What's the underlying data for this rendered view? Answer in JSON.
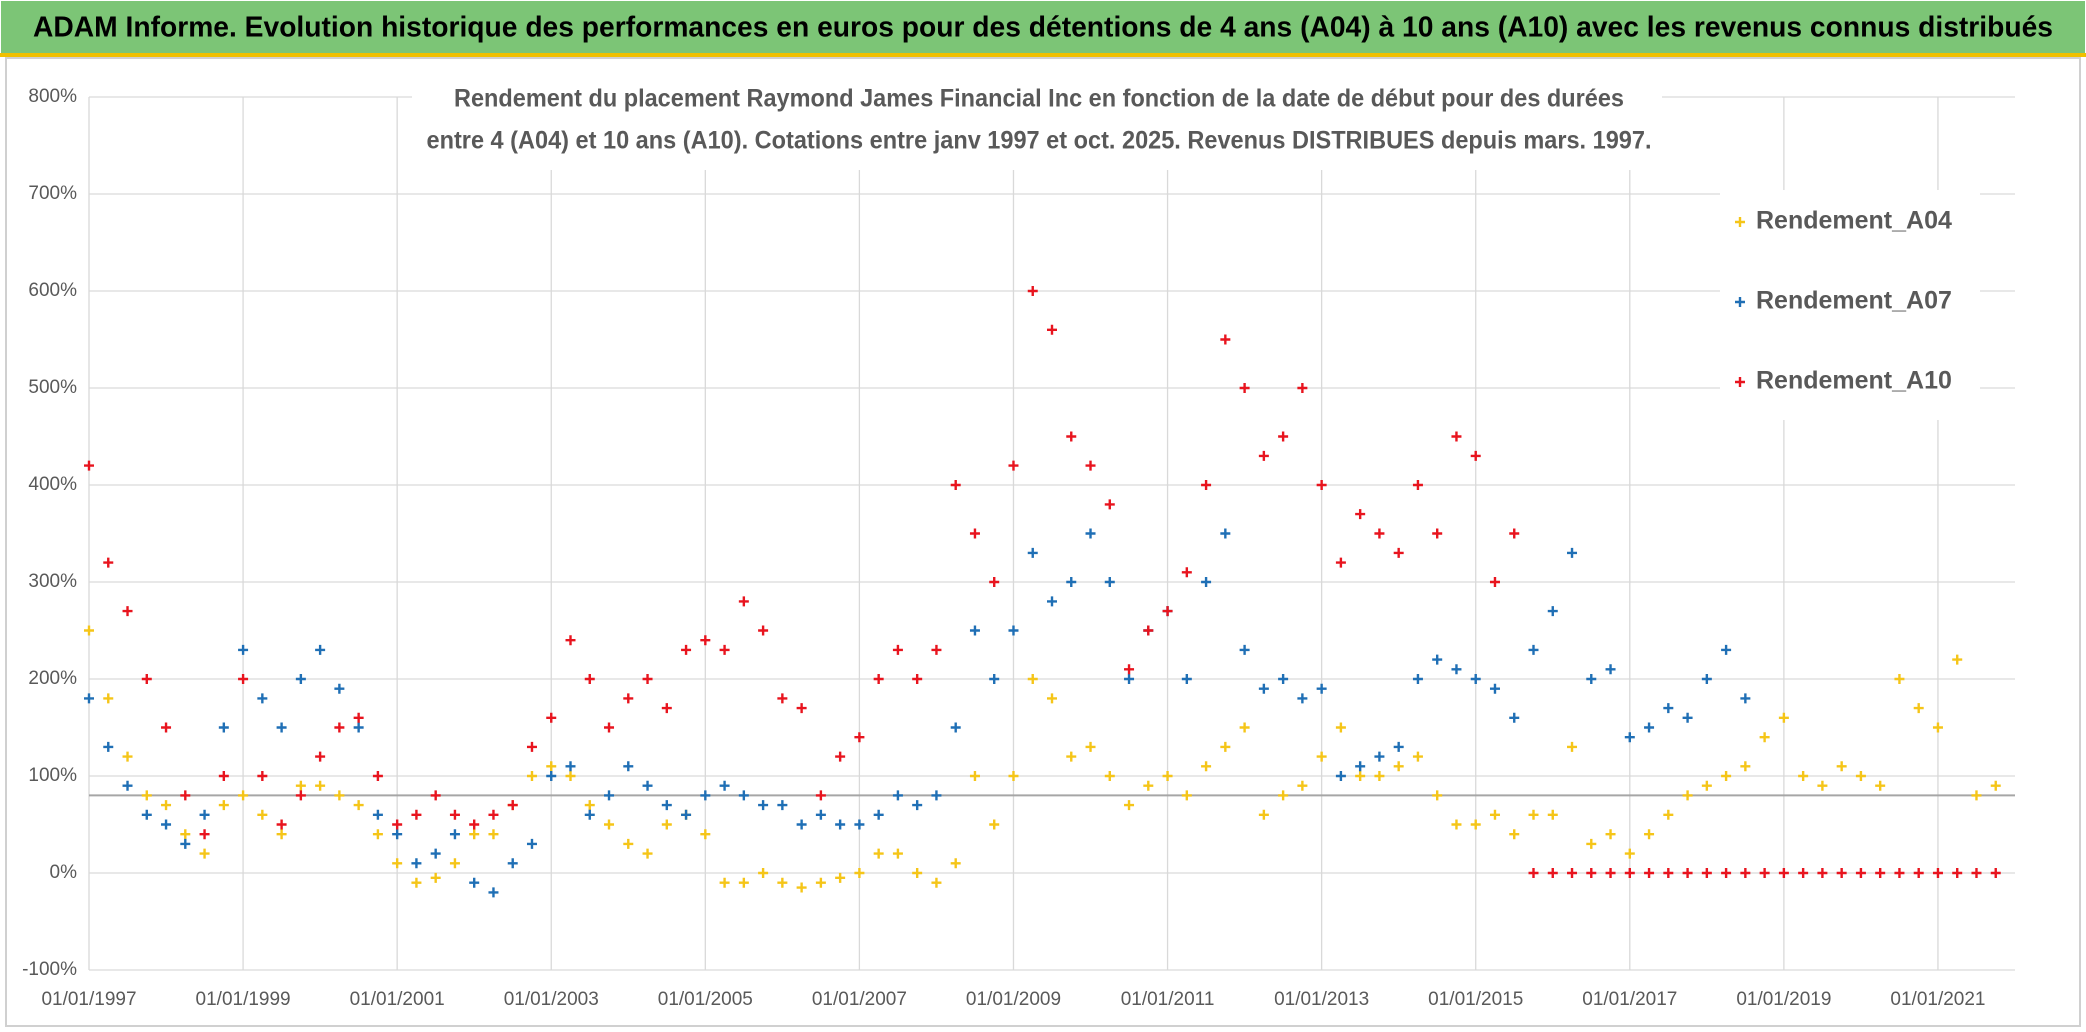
{
  "chart_data": {
    "type": "scatter",
    "title": "ADAM Informe. Evolution historique des performances en euros pour des détentions de 4 ans (A04) à 10 ans (A10) avec les revenus connus distribués",
    "subtitle": [
      "Rendement du placement Raymond James Financial Inc en fonction de la date de début pour des durées",
      "entre 4 (A04) et 10 ans (A10). Cotations entre janv 1997 et oct. 2025. Revenus DISTRIBUES depuis mars. 1997."
    ],
    "x": [
      "01/01/1997",
      "01/04/1997",
      "01/07/1997",
      "01/10/1997",
      "01/01/1998",
      "01/04/1998",
      "01/07/1998",
      "01/10/1998",
      "01/01/1999",
      "01/04/1999",
      "01/07/1999",
      "01/10/1999",
      "01/01/2000",
      "01/04/2000",
      "01/07/2000",
      "01/10/2000",
      "01/01/2001",
      "01/04/2001",
      "01/07/2001",
      "01/10/2001",
      "01/01/2002",
      "01/04/2002",
      "01/07/2002",
      "01/10/2002",
      "01/01/2003",
      "01/04/2003",
      "01/07/2003",
      "01/10/2003",
      "01/01/2004",
      "01/04/2004",
      "01/07/2004",
      "01/10/2004",
      "01/01/2005",
      "01/04/2005",
      "01/07/2005",
      "01/10/2005",
      "01/01/2006",
      "01/04/2006",
      "01/07/2006",
      "01/10/2006",
      "01/01/2007",
      "01/04/2007",
      "01/07/2007",
      "01/10/2007",
      "01/01/2008",
      "01/04/2008",
      "01/07/2008",
      "01/10/2008",
      "01/01/2009",
      "01/04/2009",
      "01/07/2009",
      "01/10/2009",
      "01/01/2010",
      "01/04/2010",
      "01/07/2010",
      "01/10/2010",
      "01/01/2011",
      "01/04/2011",
      "01/07/2011",
      "01/10/2011",
      "01/01/2012",
      "01/04/2012",
      "01/07/2012",
      "01/10/2012",
      "01/01/2013",
      "01/04/2013",
      "01/07/2013",
      "01/10/2013",
      "01/01/2014",
      "01/04/2014",
      "01/07/2014",
      "01/10/2014",
      "01/01/2015",
      "01/04/2015",
      "01/07/2015",
      "01/10/2015",
      "01/01/2016",
      "01/04/2016",
      "01/07/2016",
      "01/10/2016",
      "01/01/2017",
      "01/04/2017",
      "01/07/2017",
      "01/10/2017",
      "01/01/2018",
      "01/04/2018",
      "01/07/2018",
      "01/10/2018",
      "01/01/2019",
      "01/04/2019",
      "01/07/2019",
      "01/10/2019",
      "01/01/2020",
      "01/04/2020",
      "01/07/2020",
      "01/10/2020",
      "01/01/2021",
      "01/04/2021",
      "01/07/2021",
      "01/10/2021"
    ],
    "series": [
      {
        "name": "Rendement_A04",
        "color": "#f5c518",
        "values": [
          250,
          180,
          120,
          80,
          70,
          40,
          20,
          70,
          80,
          60,
          40,
          90,
          90,
          80,
          70,
          40,
          10,
          -10,
          -5,
          10,
          40,
          40,
          70,
          100,
          110,
          100,
          70,
          50,
          30,
          20,
          50,
          60,
          40,
          -10,
          -10,
          0,
          -10,
          -15,
          -10,
          -5,
          0,
          20,
          20,
          0,
          -10,
          10,
          100,
          50,
          100,
          200,
          180,
          120,
          130,
          100,
          70,
          90,
          100,
          80,
          110,
          130,
          150,
          60,
          80,
          90,
          120,
          150,
          100,
          100,
          110,
          120,
          80,
          50,
          50,
          60,
          40,
          60,
          60,
          130,
          30,
          40,
          20,
          40,
          60,
          80,
          90,
          100,
          110,
          140,
          160,
          100,
          90,
          110,
          100,
          90,
          200,
          170,
          150,
          220,
          80,
          90
        ]
      },
      {
        "name": "Rendement_A07",
        "color": "#1f6fb5",
        "values": [
          180,
          130,
          90,
          60,
          50,
          30,
          60,
          150,
          230,
          180,
          150,
          200,
          230,
          190,
          150,
          60,
          40,
          10,
          20,
          40,
          -10,
          -20,
          10,
          30,
          100,
          110,
          60,
          80,
          110,
          90,
          70,
          60,
          80,
          90,
          80,
          70,
          70,
          50,
          60,
          50,
          50,
          60,
          80,
          70,
          80,
          150,
          250,
          200,
          250,
          330,
          280,
          300,
          350,
          300,
          200,
          250,
          270,
          200,
          300,
          350,
          230,
          190,
          200,
          180,
          190,
          100,
          110,
          120,
          130,
          200,
          220,
          210,
          200,
          190,
          160,
          230,
          270,
          330,
          200,
          210,
          140,
          150,
          170,
          160,
          200,
          230,
          180,
          null,
          null,
          null,
          null,
          null,
          null,
          null,
          null,
          null,
          null,
          null,
          null,
          null
        ]
      },
      {
        "name": "Rendement_A10",
        "color": "#e8141e",
        "values": [
          420,
          320,
          270,
          200,
          150,
          80,
          40,
          100,
          200,
          100,
          50,
          80,
          120,
          150,
          160,
          100,
          50,
          60,
          80,
          60,
          50,
          60,
          70,
          130,
          160,
          240,
          200,
          150,
          180,
          200,
          170,
          230,
          240,
          230,
          280,
          250,
          180,
          170,
          80,
          120,
          140,
          200,
          230,
          200,
          230,
          400,
          350,
          300,
          420,
          600,
          560,
          450,
          420,
          380,
          210,
          250,
          270,
          310,
          400,
          550,
          500,
          430,
          450,
          500,
          400,
          320,
          370,
          350,
          330,
          400,
          350,
          450,
          430,
          300,
          350,
          0,
          0,
          0,
          0,
          0,
          0,
          0,
          0,
          0,
          0,
          0,
          0,
          0,
          0,
          0,
          0,
          0,
          0,
          0,
          0,
          0,
          0,
          0,
          0,
          0
        ]
      }
    ],
    "xlim": [
      "01/01/1997",
      "01/01/2022"
    ],
    "xticks": [
      "01/01/1997",
      "01/01/1999",
      "01/01/2001",
      "01/01/2003",
      "01/01/2005",
      "01/01/2007",
      "01/01/2009",
      "01/01/2011",
      "01/01/2013",
      "01/01/2015",
      "01/01/2017",
      "01/01/2019",
      "01/01/2021"
    ],
    "ylim": [
      -100,
      800
    ],
    "yticks": [
      {
        "value": -100,
        "label": "-100%"
      },
      {
        "value": 0,
        "label": "0%"
      },
      {
        "value": 100,
        "label": "100%"
      },
      {
        "value": 200,
        "label": "200%"
      },
      {
        "value": 300,
        "label": "300%"
      },
      {
        "value": 400,
        "label": "400%"
      },
      {
        "value": 500,
        "label": "500%"
      },
      {
        "value": 600,
        "label": "600%"
      },
      {
        "value": 700,
        "label": "700%"
      },
      {
        "value": 800,
        "label": "800%"
      }
    ],
    "reference_line": 80,
    "grid": true,
    "legend": "upper right"
  }
}
